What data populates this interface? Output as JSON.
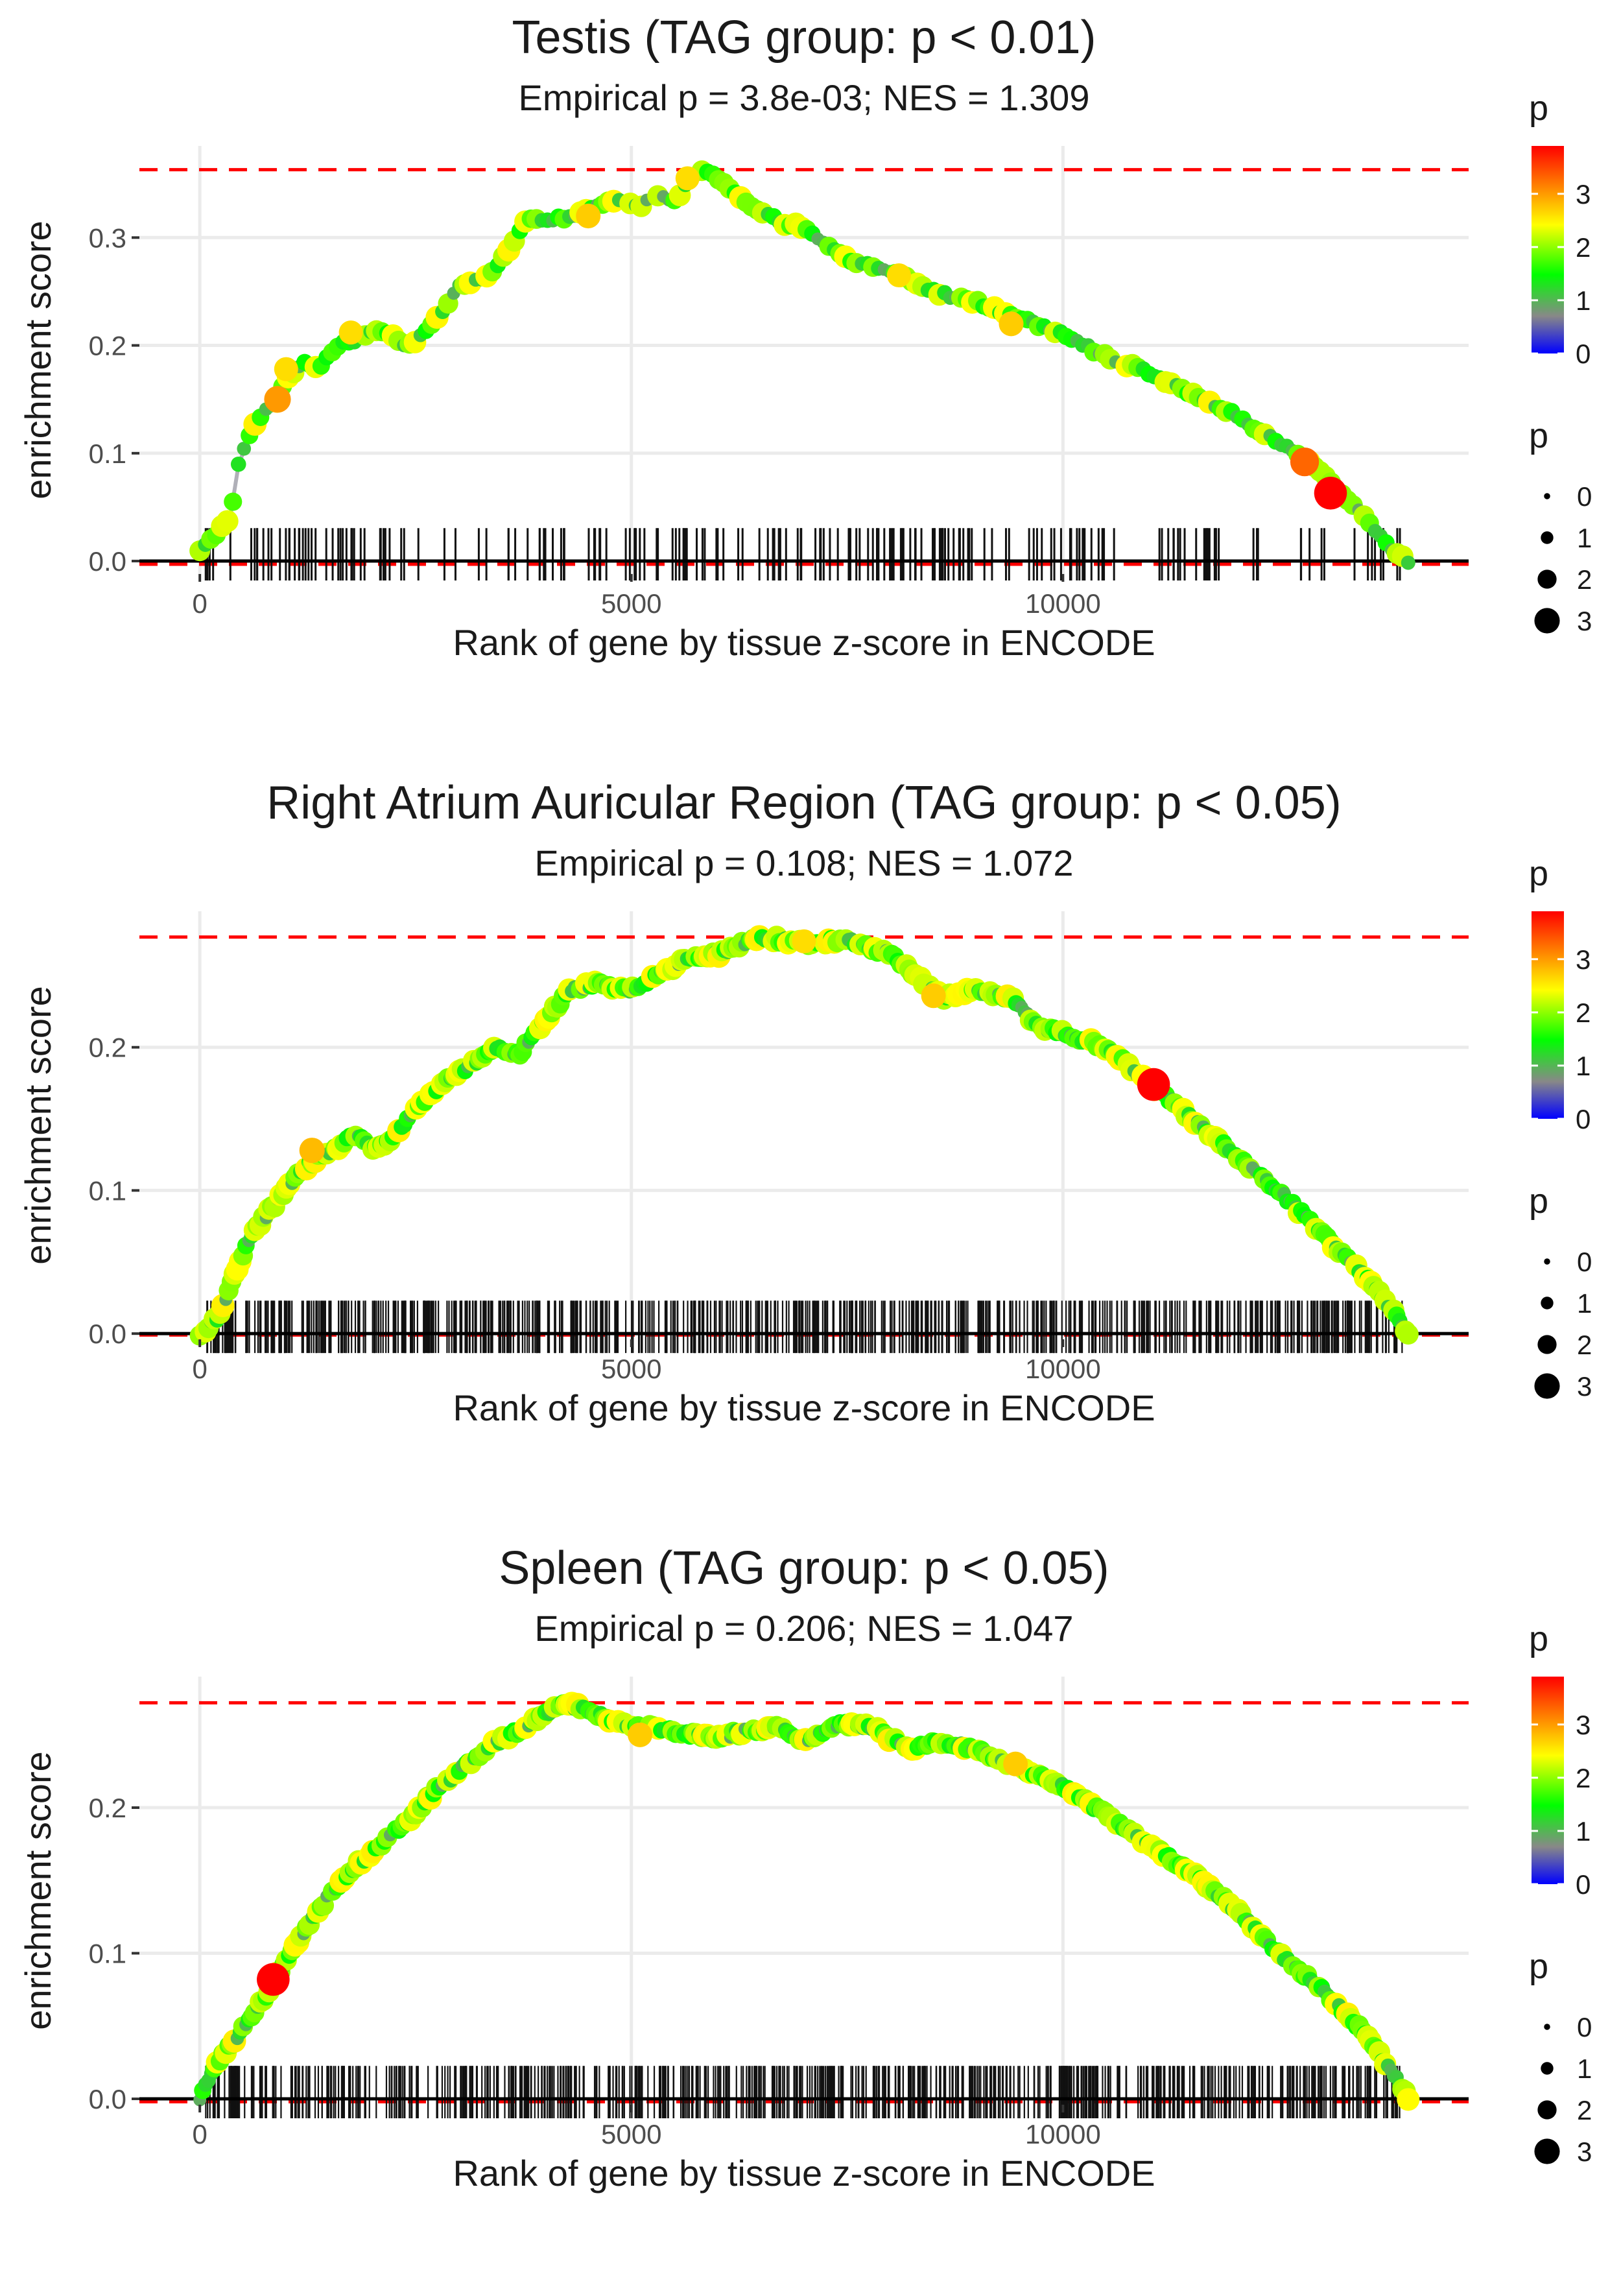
{
  "figure": {
    "x_label": "Rank of gene by tissue z-score in ENCODE",
    "y_label": "enrichment score",
    "legend_title_color": "p",
    "legend_title_size": "p",
    "colorbar_ticks": [
      "0",
      "1",
      "2",
      "3"
    ],
    "size_legend_labels": [
      "0",
      "1",
      "2",
      "3"
    ],
    "colors": {
      "max_line": "#ff0000",
      "running_line": "#b0b0b8",
      "baseline": "#000000",
      "rug": "#111111",
      "grid": "#ebebeb",
      "scale_low": "#0000ff",
      "scale_mid_low": "#888888",
      "scale_mid": "#00ff00",
      "scale_mid_high": "#ffff00",
      "scale_high": "#ff0000"
    }
  },
  "chart_data": [
    {
      "type": "line",
      "title": "Testis (TAG group: p < 0.01)",
      "subtitle": "Empirical p = 3.8e-03; NES = 1.309",
      "xlabel": "Rank of gene by tissue z-score in ENCODE",
      "ylabel": "enrichment score",
      "xlim": [
        -700,
        14700
      ],
      "ylim": [
        -0.012,
        0.385
      ],
      "x_ticks": [
        0,
        5000,
        10000
      ],
      "x_tick_labels": [
        "0",
        "5000",
        "10000"
      ],
      "y_ticks": [
        0.0,
        0.1,
        0.2,
        0.3
      ],
      "y_tick_labels": [
        "0.0",
        "0.1",
        "0.2",
        "0.3"
      ],
      "max_es": 0.363,
      "min_es": -0.003,
      "n_genes": 14000,
      "n_hits": 200,
      "seed": 11,
      "es_curve": [
        [
          0,
          0.01
        ],
        [
          100,
          0.02
        ],
        [
          250,
          0.03
        ],
        [
          350,
          0.04
        ],
        [
          450,
          0.09
        ],
        [
          600,
          0.12
        ],
        [
          750,
          0.14
        ],
        [
          900,
          0.15
        ],
        [
          1000,
          0.17
        ],
        [
          1200,
          0.185
        ],
        [
          1400,
          0.18
        ],
        [
          1600,
          0.2
        ],
        [
          1800,
          0.205
        ],
        [
          2000,
          0.215
        ],
        [
          2200,
          0.21
        ],
        [
          2400,
          0.2
        ],
        [
          2600,
          0.21
        ],
        [
          2800,
          0.23
        ],
        [
          3000,
          0.255
        ],
        [
          3200,
          0.26
        ],
        [
          3400,
          0.27
        ],
        [
          3600,
          0.29
        ],
        [
          3800,
          0.32
        ],
        [
          4000,
          0.315
        ],
        [
          4300,
          0.32
        ],
        [
          4600,
          0.33
        ],
        [
          4900,
          0.335
        ],
        [
          5100,
          0.33
        ],
        [
          5300,
          0.34
        ],
        [
          5500,
          0.335
        ],
        [
          5700,
          0.355
        ],
        [
          5800,
          0.363
        ],
        [
          6000,
          0.355
        ],
        [
          6300,
          0.335
        ],
        [
          6700,
          0.315
        ],
        [
          7000,
          0.31
        ],
        [
          7500,
          0.28
        ],
        [
          8000,
          0.27
        ],
        [
          8500,
          0.25
        ],
        [
          9000,
          0.24
        ],
        [
          9500,
          0.225
        ],
        [
          10000,
          0.21
        ],
        [
          10500,
          0.19
        ],
        [
          11000,
          0.175
        ],
        [
          11500,
          0.155
        ],
        [
          12000,
          0.135
        ],
        [
          12500,
          0.11
        ],
        [
          12900,
          0.09
        ],
        [
          13200,
          0.065
        ],
        [
          13500,
          0.04
        ],
        [
          13800,
          0.012
        ],
        [
          14000,
          0.0
        ]
      ],
      "highlight_points": [
        [
          900,
          0.15,
          3.0
        ],
        [
          1000,
          0.178,
          2.6
        ],
        [
          1750,
          0.212,
          2.6
        ],
        [
          4500,
          0.32,
          2.7
        ],
        [
          5650,
          0.355,
          2.6
        ],
        [
          8100,
          0.265,
          2.6
        ],
        [
          9400,
          0.22,
          2.7
        ],
        [
          12800,
          0.092,
          3.3
        ],
        [
          13100,
          0.063,
          3.9
        ]
      ],
      "rug_ranks_description": "ranks of 200 tissue genes drawn as tick marks along the baseline"
    },
    {
      "type": "line",
      "title": "Right Atrium Auricular Region (TAG group: p < 0.05)",
      "subtitle": "Empirical p = 0.108; NES = 1.072",
      "xlabel": "Rank of gene by tissue z-score in ENCODE",
      "ylabel": "enrichment score",
      "xlim": [
        -700,
        14700
      ],
      "ylim": [
        -0.004,
        0.295
      ],
      "x_ticks": [
        0,
        5000,
        10000
      ],
      "x_tick_labels": [
        "0",
        "5000",
        "10000"
      ],
      "y_ticks": [
        0.0,
        0.1,
        0.2
      ],
      "y_tick_labels": [
        "0.0",
        "0.1",
        "0.2"
      ],
      "max_es": 0.277,
      "min_es": -0.001,
      "n_genes": 14000,
      "n_hits": 650,
      "seed": 23,
      "es_curve": [
        [
          0,
          0.0
        ],
        [
          200,
          0.01
        ],
        [
          400,
          0.04
        ],
        [
          600,
          0.07
        ],
        [
          800,
          0.085
        ],
        [
          1000,
          0.1
        ],
        [
          1200,
          0.115
        ],
        [
          1400,
          0.125
        ],
        [
          1600,
          0.13
        ],
        [
          1800,
          0.14
        ],
        [
          2000,
          0.13
        ],
        [
          2200,
          0.135
        ],
        [
          2500,
          0.155
        ],
        [
          2800,
          0.175
        ],
        [
          3100,
          0.185
        ],
        [
          3400,
          0.2
        ],
        [
          3700,
          0.195
        ],
        [
          4000,
          0.22
        ],
        [
          4300,
          0.24
        ],
        [
          4600,
          0.245
        ],
        [
          5000,
          0.24
        ],
        [
          5300,
          0.25
        ],
        [
          5600,
          0.26
        ],
        [
          6000,
          0.265
        ],
        [
          6500,
          0.277
        ],
        [
          7000,
          0.273
        ],
        [
          7500,
          0.275
        ],
        [
          8000,
          0.265
        ],
        [
          8300,
          0.25
        ],
        [
          8600,
          0.235
        ],
        [
          9000,
          0.24
        ],
        [
          9400,
          0.235
        ],
        [
          9700,
          0.215
        ],
        [
          10000,
          0.21
        ],
        [
          10500,
          0.2
        ],
        [
          11000,
          0.175
        ],
        [
          11500,
          0.15
        ],
        [
          12000,
          0.125
        ],
        [
          12500,
          0.1
        ],
        [
          13000,
          0.07
        ],
        [
          13500,
          0.04
        ],
        [
          13900,
          0.01
        ],
        [
          14000,
          0.0
        ]
      ],
      "highlight_points": [
        [
          1300,
          0.128,
          2.8
        ],
        [
          8500,
          0.236,
          2.7
        ],
        [
          7000,
          0.274,
          2.6
        ],
        [
          11050,
          0.174,
          3.9
        ]
      ],
      "rug_ranks_description": "ranks of 650 tissue genes drawn as tick marks along the baseline"
    },
    {
      "type": "line",
      "title": "Spleen (TAG group: p < 0.05)",
      "subtitle": "Empirical p = 0.206; NES = 1.047",
      "xlabel": "Rank of gene by tissue z-score in ENCODE",
      "ylabel": "enrichment score",
      "xlim": [
        -700,
        14700
      ],
      "ylim": [
        -0.004,
        0.29
      ],
      "x_ticks": [
        0,
        5000,
        10000
      ],
      "x_tick_labels": [
        "0",
        "5000",
        "10000"
      ],
      "y_ticks": [
        0.0,
        0.1,
        0.2
      ],
      "y_tick_labels": [
        "0.0",
        "0.1",
        "0.2"
      ],
      "max_es": 0.272,
      "min_es": -0.002,
      "n_genes": 14000,
      "n_hits": 650,
      "seed": 37,
      "es_curve": [
        [
          0,
          0.0
        ],
        [
          150,
          0.02
        ],
        [
          400,
          0.04
        ],
        [
          700,
          0.065
        ],
        [
          900,
          0.085
        ],
        [
          1200,
          0.115
        ],
        [
          1500,
          0.14
        ],
        [
          1800,
          0.16
        ],
        [
          2100,
          0.175
        ],
        [
          2400,
          0.19
        ],
        [
          2700,
          0.21
        ],
        [
          3000,
          0.225
        ],
        [
          3300,
          0.24
        ],
        [
          3600,
          0.25
        ],
        [
          3900,
          0.26
        ],
        [
          4200,
          0.272
        ],
        [
          4600,
          0.265
        ],
        [
          5000,
          0.255
        ],
        [
          5300,
          0.255
        ],
        [
          5700,
          0.25
        ],
        [
          6000,
          0.248
        ],
        [
          6300,
          0.252
        ],
        [
          6700,
          0.255
        ],
        [
          7000,
          0.245
        ],
        [
          7400,
          0.258
        ],
        [
          7800,
          0.255
        ],
        [
          8200,
          0.24
        ],
        [
          8600,
          0.245
        ],
        [
          9000,
          0.24
        ],
        [
          9400,
          0.23
        ],
        [
          10000,
          0.215
        ],
        [
          10500,
          0.195
        ],
        [
          11000,
          0.175
        ],
        [
          11500,
          0.155
        ],
        [
          12000,
          0.13
        ],
        [
          12500,
          0.1
        ],
        [
          13000,
          0.075
        ],
        [
          13500,
          0.045
        ],
        [
          13900,
          0.01
        ],
        [
          14000,
          0.0
        ]
      ],
      "highlight_points": [
        [
          850,
          0.082,
          3.9
        ],
        [
          5100,
          0.25,
          2.7
        ],
        [
          9450,
          0.23,
          2.7
        ]
      ],
      "rug_ranks_description": "ranks of 650 tissue genes drawn as tick marks along the baseline"
    }
  ]
}
